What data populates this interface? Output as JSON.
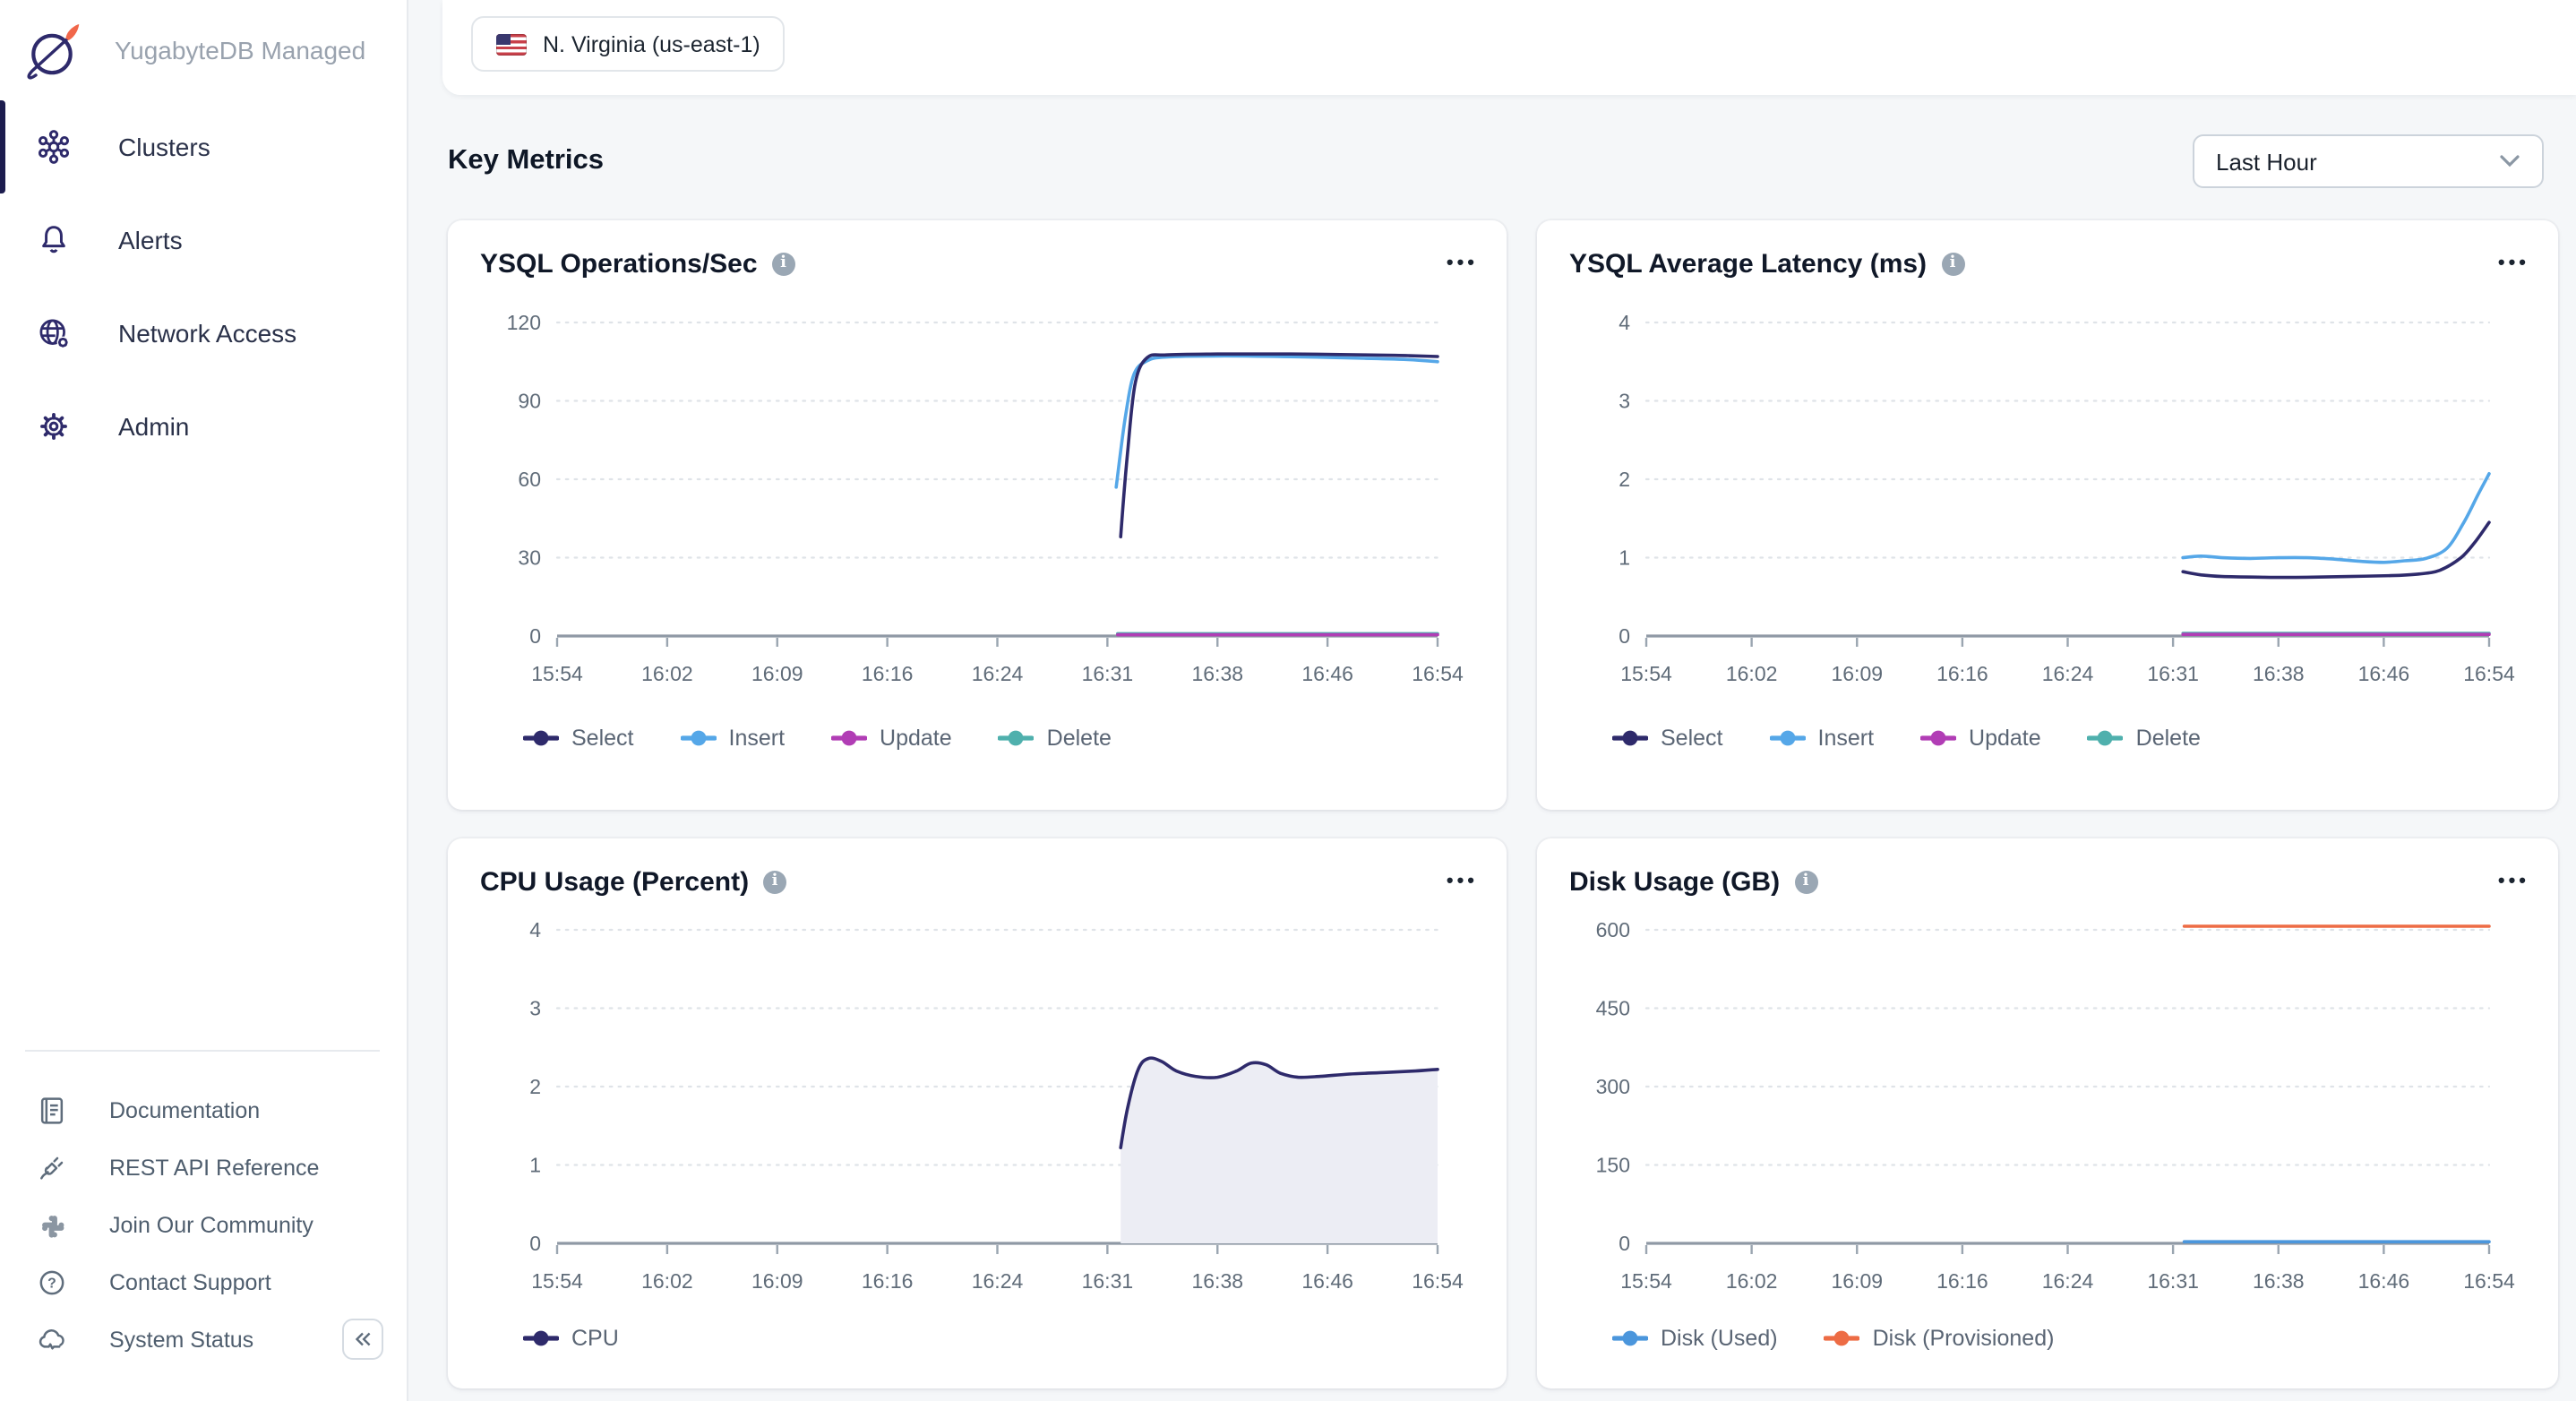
{
  "app": {
    "brand": "YugabyteDB Managed"
  },
  "sidebar": {
    "items": [
      {
        "label": "Clusters",
        "icon": "clusters-icon",
        "active": true
      },
      {
        "label": "Alerts",
        "icon": "bell-icon",
        "active": false
      },
      {
        "label": "Network Access",
        "icon": "globe-gear-icon",
        "active": false
      },
      {
        "label": "Admin",
        "icon": "gear-icon",
        "active": false
      }
    ],
    "footer_items": [
      {
        "label": "Documentation",
        "icon": "document-icon"
      },
      {
        "label": "REST API Reference",
        "icon": "plug-icon"
      },
      {
        "label": "Join Our Community",
        "icon": "slack-icon"
      },
      {
        "label": "Contact Support",
        "icon": "help-icon"
      },
      {
        "label": "System Status",
        "icon": "cloud-status-icon"
      }
    ],
    "collapse_icon": "chevron-double-left-icon"
  },
  "header": {
    "region_chip": {
      "flag_icon": "us-flag-icon",
      "label": "N. Virginia (us-east-1)"
    }
  },
  "metrics": {
    "title": "Key Metrics",
    "time_range": "Last Hour"
  },
  "colors": {
    "select": "#2e2a6b",
    "insert": "#55a7e8",
    "update": "#b13db5",
    "delete": "#4fb0ad",
    "cpu": "#2e2a6b",
    "cpu_fill": "#ecedf4",
    "disk_used": "#4b96dc",
    "disk_provisioned": "#ed6c45",
    "accent_navy": "#2e2a6b",
    "logo_orange": "#f1674a"
  },
  "chart_data": [
    {
      "id": "ysql-ops",
      "type": "line",
      "title": "YSQL Operations/Sec",
      "info_icon": "info-icon",
      "menu_icon": "ellipsis-icon",
      "grid": "dotted-horizontal",
      "legend_position": "bottom-left",
      "ylim": [
        0,
        120
      ],
      "y_max": 120,
      "y_ticks": [
        0,
        30,
        60,
        90,
        120
      ],
      "x_ticks": [
        "15:54",
        "16:02",
        "16:09",
        "16:16",
        "16:24",
        "16:31",
        "16:38",
        "16:46",
        "16:54"
      ],
      "x_range_minutes": 60,
      "series": [
        {
          "name": "Select",
          "color": "#2e2a6b",
          "points": [
            [
              38.4,
              38
            ],
            [
              38.9,
              72
            ],
            [
              39.4,
              97
            ],
            [
              40.2,
              106.5
            ],
            [
              41.5,
              107.6
            ],
            [
              45,
              107.9
            ],
            [
              50,
              107.9
            ],
            [
              55,
              107.6
            ],
            [
              58,
              107.3
            ],
            [
              60,
              107
            ]
          ]
        },
        {
          "name": "Insert",
          "color": "#55a7e8",
          "points": [
            [
              38.1,
              57
            ],
            [
              38.7,
              83
            ],
            [
              39.3,
              100
            ],
            [
              40.2,
              105.3
            ],
            [
              41.5,
              106.8
            ],
            [
              45,
              107.2
            ],
            [
              50,
              106.9
            ],
            [
              55,
              106.3
            ],
            [
              58,
              105.8
            ],
            [
              60,
              105
            ]
          ]
        },
        {
          "name": "Update",
          "color": "#b13db5",
          "points": [
            [
              38.2,
              0.5
            ],
            [
              60,
              0.5
            ]
          ]
        },
        {
          "name": "Delete",
          "color": "#4fb0ad",
          "points": [
            [
              38.2,
              0.9
            ],
            [
              60,
              0.9
            ]
          ]
        }
      ]
    },
    {
      "id": "ysql-latency",
      "type": "line",
      "title": "YSQL Average Latency (ms)",
      "info_icon": "info-icon",
      "menu_icon": "ellipsis-icon",
      "grid": "dotted-horizontal",
      "legend_position": "bottom-left",
      "ylim": [
        0,
        4
      ],
      "y_max": 4,
      "y_ticks": [
        0,
        1,
        2,
        3,
        4
      ],
      "x_ticks": [
        "15:54",
        "16:02",
        "16:09",
        "16:16",
        "16:24",
        "16:31",
        "16:38",
        "16:46",
        "16:54"
      ],
      "x_range_minutes": 60,
      "series": [
        {
          "name": "Select",
          "color": "#2e2a6b",
          "points": [
            [
              38.2,
              0.82
            ],
            [
              39.5,
              0.78
            ],
            [
              41,
              0.76
            ],
            [
              44,
              0.75
            ],
            [
              47,
              0.75
            ],
            [
              50,
              0.76
            ],
            [
              53,
              0.77
            ],
            [
              55,
              0.79
            ],
            [
              56.5,
              0.84
            ],
            [
              58,
              1.0
            ],
            [
              59,
              1.2
            ],
            [
              60,
              1.45
            ]
          ]
        },
        {
          "name": "Insert",
          "color": "#55a7e8",
          "points": [
            [
              38.2,
              1.0
            ],
            [
              39.5,
              1.02
            ],
            [
              41,
              1.0
            ],
            [
              43,
              0.99
            ],
            [
              45,
              1.0
            ],
            [
              47,
              1.0
            ],
            [
              49,
              0.98
            ],
            [
              51,
              0.95
            ],
            [
              52.5,
              0.94
            ],
            [
              54,
              0.96
            ],
            [
              55.5,
              0.99
            ],
            [
              57,
              1.12
            ],
            [
              58.2,
              1.45
            ],
            [
              59.2,
              1.8
            ],
            [
              60,
              2.07
            ]
          ]
        },
        {
          "name": "Update",
          "color": "#b13db5",
          "points": [
            [
              38.2,
              0.02
            ],
            [
              60,
              0.02
            ]
          ]
        },
        {
          "name": "Delete",
          "color": "#4fb0ad",
          "points": [
            [
              38.2,
              0.035
            ],
            [
              60,
              0.035
            ]
          ]
        }
      ]
    },
    {
      "id": "cpu-usage",
      "type": "area",
      "title": "CPU Usage (Percent)",
      "info_icon": "info-icon",
      "menu_icon": "ellipsis-icon",
      "grid": "dotted-horizontal",
      "legend_position": "bottom-left",
      "ylim": [
        0,
        4
      ],
      "y_max": 4,
      "y_ticks": [
        0,
        1,
        2,
        3,
        4
      ],
      "x_ticks": [
        "15:54",
        "16:02",
        "16:09",
        "16:16",
        "16:24",
        "16:31",
        "16:38",
        "16:46",
        "16:54"
      ],
      "x_range_minutes": 60,
      "series": [
        {
          "name": "CPU",
          "color": "#2e2a6b",
          "fill": "#ecedf4",
          "points": [
            [
              38.4,
              1.22
            ],
            [
              38.9,
              1.75
            ],
            [
              39.6,
              2.22
            ],
            [
              40.3,
              2.36
            ],
            [
              41.2,
              2.32
            ],
            [
              42.2,
              2.2
            ],
            [
              43.5,
              2.13
            ],
            [
              45,
              2.12
            ],
            [
              46.3,
              2.2
            ],
            [
              47.3,
              2.3
            ],
            [
              48.3,
              2.28
            ],
            [
              49.3,
              2.17
            ],
            [
              50.5,
              2.12
            ],
            [
              52,
              2.13
            ],
            [
              54,
              2.16
            ],
            [
              56.5,
              2.18
            ],
            [
              58.5,
              2.2
            ],
            [
              60,
              2.22
            ]
          ]
        }
      ]
    },
    {
      "id": "disk-usage",
      "type": "line",
      "title": "Disk Usage (GB)",
      "info_icon": "info-icon",
      "menu_icon": "ellipsis-icon",
      "grid": "dotted-horizontal",
      "legend_position": "bottom-left",
      "ylim": [
        0,
        600
      ],
      "y_max": 600,
      "y_ticks": [
        0,
        150,
        300,
        450,
        600
      ],
      "x_ticks": [
        "15:54",
        "16:02",
        "16:09",
        "16:16",
        "16:24",
        "16:31",
        "16:38",
        "16:46",
        "16:54"
      ],
      "x_range_minutes": 60,
      "series": [
        {
          "name": "Disk (Used)",
          "color": "#4b96dc",
          "points": [
            [
              38.3,
              3
            ],
            [
              60,
              3
            ]
          ]
        },
        {
          "name": "Disk (Provisioned)",
          "color": "#ed6c45",
          "points": [
            [
              38.3,
              607
            ],
            [
              60,
              607
            ]
          ]
        }
      ]
    }
  ]
}
